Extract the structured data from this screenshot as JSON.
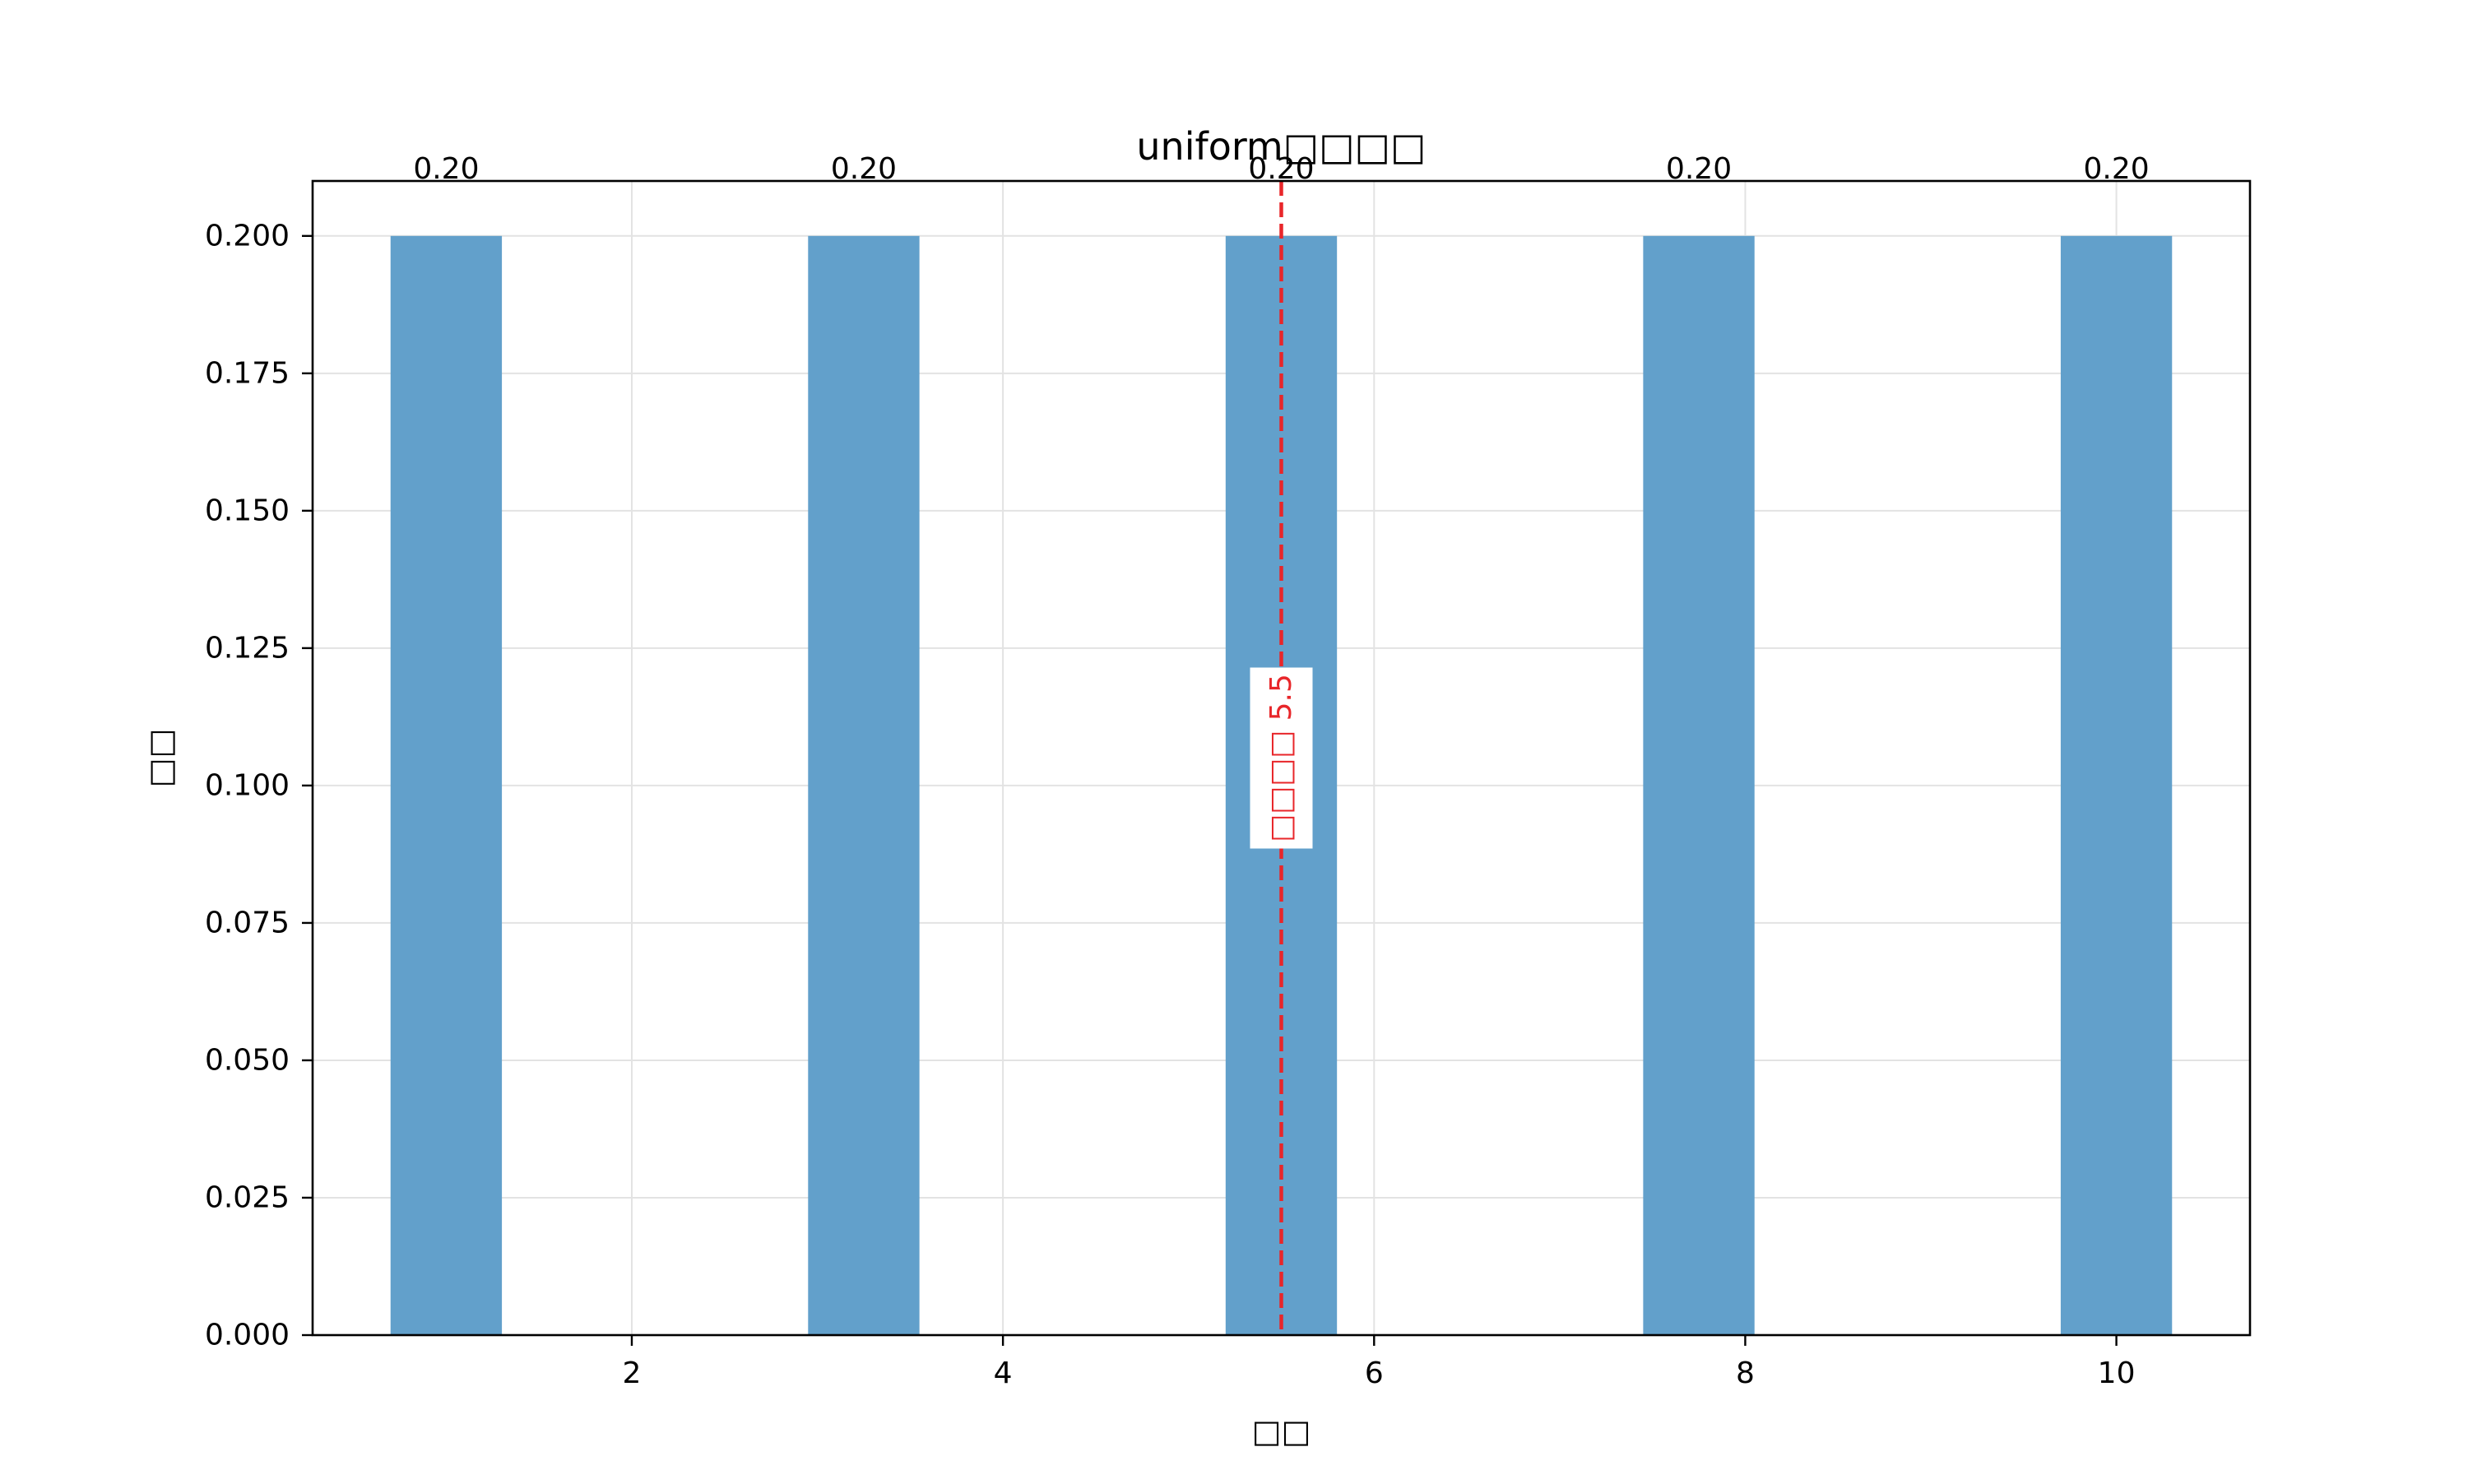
{
  "chart_data": {
    "type": "bar",
    "title": "uniform□□□□",
    "xlabel": "□□",
    "ylabel": "□□",
    "x": [
      1,
      3.25,
      5.5,
      7.75,
      10
    ],
    "values": [
      0.2,
      0.2,
      0.2,
      0.2,
      0.2
    ],
    "bar_width": 0.6,
    "value_labels": [
      "0.20",
      "0.20",
      "0.20",
      "0.20",
      "0.20"
    ],
    "xlim": [
      0.28,
      10.72
    ],
    "ylim": [
      0,
      0.21
    ],
    "xticks": [
      2,
      4,
      6,
      8,
      10
    ],
    "xtick_labels": [
      "2",
      "4",
      "6",
      "8",
      "10"
    ],
    "yticks": [
      0,
      0.025,
      0.05,
      0.075,
      0.1,
      0.125,
      0.15,
      0.175,
      0.2
    ],
    "ytick_labels": [
      "0.000",
      "0.025",
      "0.050",
      "0.075",
      "0.100",
      "0.125",
      "0.150",
      "0.175",
      "0.200"
    ],
    "grid": true,
    "mean_line": {
      "x": 5.5,
      "label": "□□□□ 5.5",
      "color": "#e8262a",
      "style": "dashed"
    },
    "colors": {
      "bar": "#62a0cb",
      "grid": "#e3e3e3",
      "axis": "#000000"
    }
  }
}
